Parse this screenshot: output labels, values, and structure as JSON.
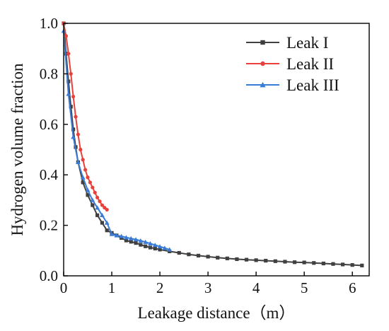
{
  "chart_data": {
    "type": "line",
    "title": "",
    "xlabel": "Leakage distance（m）",
    "ylabel": "Hydrogen volume fraction",
    "xlim": [
      0,
      6.35
    ],
    "ylim": [
      0,
      1.0
    ],
    "xticks": [
      "0",
      "1",
      "2",
      "3",
      "4",
      "5",
      "6"
    ],
    "yticks": [
      "0.0",
      "0.2",
      "0.4",
      "0.6",
      "0.8",
      "1.0"
    ],
    "grid": false,
    "legend_position": "top-right",
    "series": [
      {
        "name": "Leak I",
        "color": "#404040",
        "marker": "square",
        "x": [
          0,
          0.05,
          0.1,
          0.15,
          0.2,
          0.25,
          0.3,
          0.4,
          0.5,
          0.6,
          0.7,
          0.8,
          0.9,
          1.0,
          1.1,
          1.2,
          1.3,
          1.4,
          1.5,
          1.6,
          1.7,
          1.8,
          1.9,
          2.0,
          2.2,
          2.4,
          2.6,
          2.8,
          3.0,
          3.2,
          3.4,
          3.6,
          3.8,
          4.0,
          4.2,
          4.4,
          4.6,
          4.8,
          5.0,
          5.2,
          5.4,
          5.6,
          5.8,
          6.0,
          6.2
        ],
        "y": [
          1.0,
          0.88,
          0.77,
          0.67,
          0.58,
          0.51,
          0.45,
          0.37,
          0.32,
          0.28,
          0.24,
          0.21,
          0.18,
          0.17,
          0.16,
          0.15,
          0.14,
          0.135,
          0.13,
          0.123,
          0.117,
          0.112,
          0.108,
          0.104,
          0.097,
          0.091,
          0.085,
          0.08,
          0.076,
          0.072,
          0.069,
          0.066,
          0.064,
          0.062,
          0.06,
          0.058,
          0.056,
          0.054,
          0.053,
          0.051,
          0.049,
          0.047,
          0.045,
          0.043,
          0.041
        ]
      },
      {
        "name": "Leak II",
        "color": "#e8413c",
        "marker": "circle",
        "x": [
          0,
          0.05,
          0.1,
          0.15,
          0.2,
          0.25,
          0.3,
          0.35,
          0.4,
          0.45,
          0.5,
          0.55,
          0.6,
          0.65,
          0.7,
          0.75,
          0.8,
          0.85,
          0.9
        ],
        "y": [
          1.0,
          0.95,
          0.88,
          0.8,
          0.71,
          0.63,
          0.56,
          0.5,
          0.46,
          0.42,
          0.39,
          0.37,
          0.35,
          0.33,
          0.31,
          0.295,
          0.28,
          0.27,
          0.262
        ]
      },
      {
        "name": "Leak III",
        "color": "#3a7bd5",
        "marker": "triangle",
        "x": [
          0,
          0.1,
          0.2,
          0.3,
          0.4,
          0.5,
          0.6,
          0.7,
          0.8,
          0.9,
          1.0,
          1.1,
          1.2,
          1.3,
          1.4,
          1.5,
          1.6,
          1.7,
          1.8,
          1.9,
          2.0,
          2.1,
          2.2
        ],
        "y": [
          0.97,
          0.72,
          0.55,
          0.45,
          0.39,
          0.34,
          0.3,
          0.27,
          0.24,
          0.21,
          0.165,
          0.16,
          0.157,
          0.152,
          0.148,
          0.144,
          0.139,
          0.134,
          0.128,
          0.122,
          0.116,
          0.11,
          0.104
        ]
      }
    ]
  }
}
